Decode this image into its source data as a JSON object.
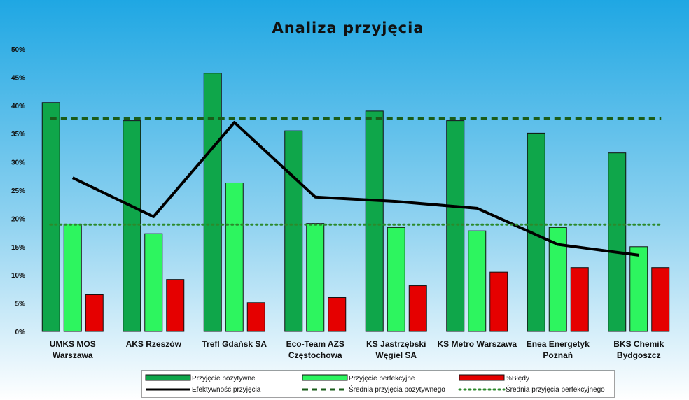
{
  "chart_data": {
    "type": "bar",
    "title": "Analiza przyjęcia",
    "categories": [
      [
        "UMKS MOS",
        "Warszawa"
      ],
      [
        "AKS Rzeszów"
      ],
      [
        "Trefl Gdańsk SA"
      ],
      [
        "Eco-Team AZS",
        "Częstochowa"
      ],
      [
        "KS Jastrzębski",
        "Węgiel SA"
      ],
      [
        "KS Metro  Warszawa"
      ],
      [
        "Enea Energetyk",
        "Poznań"
      ],
      [
        "BKS Chemik",
        "Bydgoszcz"
      ]
    ],
    "ylim": [
      0,
      50
    ],
    "y_ticks": [
      "0%",
      "5%",
      "10%",
      "15%",
      "20%",
      "25%",
      "30%",
      "35%",
      "40%",
      "45%",
      "50%"
    ],
    "grid": false,
    "legend_position": "bottom",
    "series": [
      {
        "name": "Przyjęcie pozytywne",
        "type": "bar",
        "color": "#0fa64a",
        "values": [
          40.5,
          37.3,
          45.7,
          35.5,
          39.0,
          37.3,
          35.1,
          31.6
        ]
      },
      {
        "name": "Przyjęcie perfekcyjne",
        "type": "bar",
        "color": "#2df55f",
        "values": [
          19.0,
          17.3,
          26.3,
          19.1,
          18.4,
          17.8,
          18.4,
          15.0
        ]
      },
      {
        "name": "%Błędy",
        "type": "bar",
        "color": "#e50000",
        "values": [
          6.5,
          9.2,
          5.1,
          6.0,
          8.1,
          10.5,
          11.3,
          11.3
        ]
      },
      {
        "name": "Efektywność przyjęcia",
        "type": "line",
        "color": "#000000",
        "values": [
          27.2,
          20.3,
          37.0,
          23.8,
          23.0,
          21.8,
          15.4,
          13.5
        ]
      },
      {
        "name": "Średnia przyjęcia pozytywnego",
        "type": "dashed-line",
        "color": "#1a5c1a",
        "values": [
          37.7,
          37.7,
          37.7,
          37.7,
          37.7,
          37.7,
          37.7,
          37.7
        ]
      },
      {
        "name": "Średnia przyjęcia perfekcyjnego",
        "type": "dotted-line",
        "color": "#2c8a2c",
        "values": [
          18.9,
          18.9,
          18.9,
          18.9,
          18.9,
          18.9,
          18.9,
          18.9
        ]
      }
    ]
  }
}
